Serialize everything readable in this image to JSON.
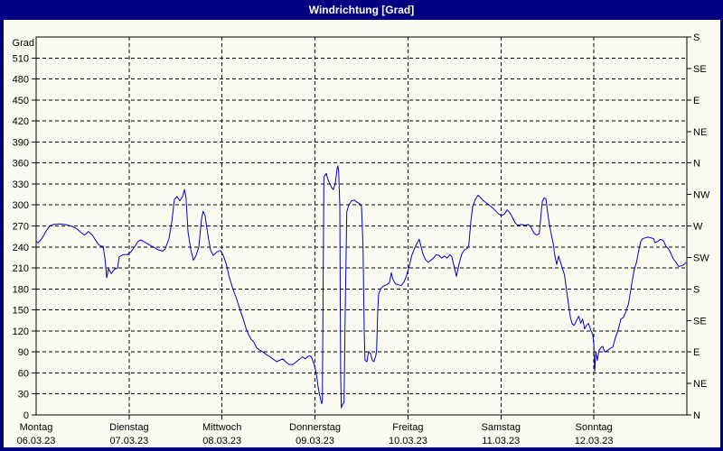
{
  "window": {
    "title": "Windrichtung [Grad]"
  },
  "colors": {
    "titlebar_bg": "#000080",
    "titlebar_text": "#ffffff",
    "window_border": "#000080",
    "background": "#fbfbf2",
    "line": "#0000cc",
    "axis": "#000000",
    "grid": "#000000"
  },
  "chart_data": {
    "type": "line",
    "title": "Windrichtung [Grad]",
    "ylabel": "Grad",
    "grid": true,
    "y_axis": {
      "min": 0,
      "max": 540,
      "tick_step": 30,
      "ticks_left": [
        0,
        30,
        60,
        90,
        120,
        150,
        180,
        210,
        240,
        270,
        300,
        330,
        360,
        390,
        420,
        450,
        480,
        510
      ]
    },
    "y_axis_right": [
      {
        "deg": 540,
        "label": "S"
      },
      {
        "deg": 495,
        "label": "SE"
      },
      {
        "deg": 450,
        "label": "E"
      },
      {
        "deg": 405,
        "label": "NE"
      },
      {
        "deg": 360,
        "label": "N"
      },
      {
        "deg": 315,
        "label": "NW"
      },
      {
        "deg": 270,
        "label": "W"
      },
      {
        "deg": 225,
        "label": "SW"
      },
      {
        "deg": 180,
        "label": "S"
      },
      {
        "deg": 135,
        "label": "SE"
      },
      {
        "deg": 90,
        "label": "E"
      },
      {
        "deg": 45,
        "label": "NE"
      },
      {
        "deg": 0,
        "label": "N"
      }
    ],
    "x_axis": {
      "total_hours": 168,
      "hours_per_day": 24,
      "days": [
        {
          "name": "Montag",
          "date": "06.03.23"
        },
        {
          "name": "Dienstag",
          "date": "07.03.23"
        },
        {
          "name": "Mittwoch",
          "date": "08.03.23"
        },
        {
          "name": "Donnerstag",
          "date": "09.03.23"
        },
        {
          "name": "Freitag",
          "date": "10.03.23"
        },
        {
          "name": "Samstag",
          "date": "11.03.23"
        },
        {
          "name": "Sonntag",
          "date": "12.03.23"
        }
      ]
    },
    "series": [
      {
        "name": "Windrichtung",
        "unit": "Grad",
        "color": "#0000cc",
        "points": [
          [
            0,
            248
          ],
          [
            0.5,
            246
          ],
          [
            1.5,
            252
          ],
          [
            2.5,
            262
          ],
          [
            3.5,
            270
          ],
          [
            4.5,
            272
          ],
          [
            6,
            273
          ],
          [
            7.5,
            272
          ],
          [
            9,
            270
          ],
          [
            10.5,
            266
          ],
          [
            11.5,
            261
          ],
          [
            12.5,
            257
          ],
          [
            13.5,
            262
          ],
          [
            14.5,
            257
          ],
          [
            15.3,
            250
          ],
          [
            16,
            244
          ],
          [
            16.8,
            241
          ],
          [
            17.3,
            241
          ],
          [
            17.8,
            222
          ],
          [
            18.2,
            196
          ],
          [
            18.7,
            209
          ],
          [
            19.4,
            202
          ],
          [
            20.2,
            208
          ],
          [
            21,
            210
          ],
          [
            21.5,
            226
          ],
          [
            22.5,
            229
          ],
          [
            23.5,
            229
          ],
          [
            24.5,
            233
          ],
          [
            25.5,
            241
          ],
          [
            26.3,
            248
          ],
          [
            27,
            250
          ],
          [
            28,
            247
          ],
          [
            29.2,
            243
          ],
          [
            30.3,
            240
          ],
          [
            31.5,
            236
          ],
          [
            32.7,
            234
          ],
          [
            33.3,
            237
          ],
          [
            34.3,
            252
          ],
          [
            35,
            275
          ],
          [
            35.7,
            308
          ],
          [
            36.4,
            312
          ],
          [
            37.1,
            306
          ],
          [
            37.8,
            312
          ],
          [
            38.3,
            322
          ],
          [
            38.7,
            310
          ],
          [
            39.2,
            262
          ],
          [
            39.9,
            237
          ],
          [
            40.6,
            221
          ],
          [
            41.3,
            228
          ],
          [
            42,
            240
          ],
          [
            42.7,
            280
          ],
          [
            43.1,
            291
          ],
          [
            43.6,
            285
          ],
          [
            44.3,
            258
          ],
          [
            45,
            236
          ],
          [
            45.7,
            228
          ],
          [
            46.7,
            233
          ],
          [
            47.6,
            235
          ],
          [
            48.3,
            228
          ],
          [
            49,
            217
          ],
          [
            49.9,
            196
          ],
          [
            50.8,
            180
          ],
          [
            51.8,
            165
          ],
          [
            52.7,
            149
          ],
          [
            53.4,
            138
          ],
          [
            54.1,
            125
          ],
          [
            54.8,
            115
          ],
          [
            55.5,
            108
          ],
          [
            56.2,
            104
          ],
          [
            56.9,
            96
          ],
          [
            57.6,
            93
          ],
          [
            58.6,
            90
          ],
          [
            59.5,
            86
          ],
          [
            60.4,
            83
          ],
          [
            61.4,
            79
          ],
          [
            62.1,
            76
          ],
          [
            62.8,
            78
          ],
          [
            63.7,
            80
          ],
          [
            64.4,
            76
          ],
          [
            65.3,
            72
          ],
          [
            66.3,
            72
          ],
          [
            67.2,
            76
          ],
          [
            68.1,
            80
          ],
          [
            68.8,
            83
          ],
          [
            69.5,
            80
          ],
          [
            70.2,
            84
          ],
          [
            70.9,
            84
          ],
          [
            71.4,
            78
          ],
          [
            71.9,
            70
          ],
          [
            72.3,
            60
          ],
          [
            72.8,
            40
          ],
          [
            73.2,
            28
          ],
          [
            73.7,
            16
          ],
          [
            73.9,
            20
          ],
          [
            74.1,
            200
          ],
          [
            74.3,
            340
          ],
          [
            74.9,
            345
          ],
          [
            75.3,
            337
          ],
          [
            75.8,
            330
          ],
          [
            76.3,
            325
          ],
          [
            76.7,
            322
          ],
          [
            77.2,
            330
          ],
          [
            77.7,
            352
          ],
          [
            77.9,
            356
          ],
          [
            78.1,
            348
          ],
          [
            78.4,
            300
          ],
          [
            78.6,
            60
          ],
          [
            78.8,
            10
          ],
          [
            79,
            14
          ],
          [
            79.5,
            18
          ],
          [
            79.8,
            150
          ],
          [
            80.2,
            290
          ],
          [
            80.7,
            300
          ],
          [
            81.4,
            306
          ],
          [
            82.1,
            307
          ],
          [
            82.8,
            304
          ],
          [
            83.5,
            302
          ],
          [
            84,
            298
          ],
          [
            84.4,
            240
          ],
          [
            84.7,
            120
          ],
          [
            84.9,
            78
          ],
          [
            85.4,
            76
          ],
          [
            85.8,
            90
          ],
          [
            86.3,
            88
          ],
          [
            86.8,
            78
          ],
          [
            87.2,
            76
          ],
          [
            87.7,
            85
          ],
          [
            87.9,
            92
          ],
          [
            88.2,
            150
          ],
          [
            88.4,
            172
          ],
          [
            88.9,
            180
          ],
          [
            89.6,
            184
          ],
          [
            90.5,
            186
          ],
          [
            91.2,
            189
          ],
          [
            91.7,
            203
          ],
          [
            92.1,
            194
          ],
          [
            92.8,
            187
          ],
          [
            93.5,
            186
          ],
          [
            94.3,
            185
          ],
          [
            95,
            190
          ],
          [
            95.7,
            200
          ],
          [
            96.3,
            212
          ],
          [
            97,
            228
          ],
          [
            97.7,
            238
          ],
          [
            98.4,
            246
          ],
          [
            98.9,
            251
          ],
          [
            99.3,
            242
          ],
          [
            99.8,
            231
          ],
          [
            100.5,
            222
          ],
          [
            101.2,
            218
          ],
          [
            101.9,
            221
          ],
          [
            102.6,
            224
          ],
          [
            103.3,
            229
          ],
          [
            104,
            228
          ],
          [
            104.7,
            224
          ],
          [
            105.4,
            227
          ],
          [
            106.1,
            224
          ],
          [
            106.8,
            229
          ],
          [
            107.3,
            226
          ],
          [
            108,
            210
          ],
          [
            108.5,
            198
          ],
          [
            109.2,
            216
          ],
          [
            109.9,
            230
          ],
          [
            110.6,
            236
          ],
          [
            111.3,
            238
          ],
          [
            111.7,
            242
          ],
          [
            112.2,
            275
          ],
          [
            112.7,
            298
          ],
          [
            113.4,
            308
          ],
          [
            114.1,
            314
          ],
          [
            114.8,
            310
          ],
          [
            115.5,
            306
          ],
          [
            116.2,
            303
          ],
          [
            116.9,
            300
          ],
          [
            117.8,
            296
          ],
          [
            118.7,
            291
          ],
          [
            119.4,
            287
          ],
          [
            120.2,
            285
          ],
          [
            120.9,
            287
          ],
          [
            121.6,
            293
          ],
          [
            122.3,
            289
          ],
          [
            122.9,
            283
          ],
          [
            123.6,
            275
          ],
          [
            124.3,
            271
          ],
          [
            125.3,
            272
          ],
          [
            126.2,
            271
          ],
          [
            127.1,
            272
          ],
          [
            127.8,
            268
          ],
          [
            128.5,
            260
          ],
          [
            129.2,
            257
          ],
          [
            129.9,
            259
          ],
          [
            130.4,
            290
          ],
          [
            130.7,
            305
          ],
          [
            131.1,
            310
          ],
          [
            131.6,
            309
          ],
          [
            132.1,
            288
          ],
          [
            132.5,
            272
          ],
          [
            133,
            258
          ],
          [
            133.5,
            245
          ],
          [
            133.9,
            228
          ],
          [
            134.4,
            215
          ],
          [
            134.9,
            227
          ],
          [
            135.4,
            218
          ],
          [
            135.9,
            209
          ],
          [
            136.4,
            200
          ],
          [
            136.9,
            180
          ],
          [
            137.4,
            160
          ],
          [
            137.9,
            140
          ],
          [
            138.4,
            130
          ],
          [
            138.9,
            128
          ],
          [
            139.5,
            135
          ],
          [
            140.1,
            141
          ],
          [
            140.6,
            131
          ],
          [
            141.1,
            137
          ],
          [
            141.6,
            123
          ],
          [
            142.1,
            128
          ],
          [
            142.6,
            131
          ],
          [
            143.2,
            121
          ],
          [
            143.7,
            115
          ],
          [
            144,
            100
          ],
          [
            144.2,
            62
          ],
          [
            144.5,
            90
          ],
          [
            144.9,
            78
          ],
          [
            145.3,
            92
          ],
          [
            145.8,
            96
          ],
          [
            146.3,
            98
          ],
          [
            146.8,
            90
          ],
          [
            147.5,
            92
          ],
          [
            148.2,
            95
          ],
          [
            148.9,
            97
          ],
          [
            149.6,
            111
          ],
          [
            150.3,
            122
          ],
          [
            151,
            137
          ],
          [
            151.6,
            139
          ],
          [
            152.3,
            148
          ],
          [
            152.9,
            158
          ],
          [
            153.5,
            178
          ],
          [
            154,
            195
          ],
          [
            154.5,
            209
          ],
          [
            155,
            218
          ],
          [
            155.6,
            236
          ],
          [
            156.1,
            248
          ],
          [
            156.6,
            252
          ],
          [
            157.3,
            253
          ],
          [
            158,
            254
          ],
          [
            158.7,
            253
          ],
          [
            159.4,
            252
          ],
          [
            159.8,
            246
          ],
          [
            160.5,
            248
          ],
          [
            161.2,
            251
          ],
          [
            161.9,
            249
          ],
          [
            162.6,
            241
          ],
          [
            163.3,
            237
          ],
          [
            164,
            229
          ],
          [
            164.5,
            223
          ],
          [
            165.2,
            218
          ],
          [
            165.9,
            212
          ],
          [
            166.6,
            213
          ],
          [
            167.3,
            215
          ],
          [
            167.8,
            218
          ]
        ]
      }
    ]
  }
}
